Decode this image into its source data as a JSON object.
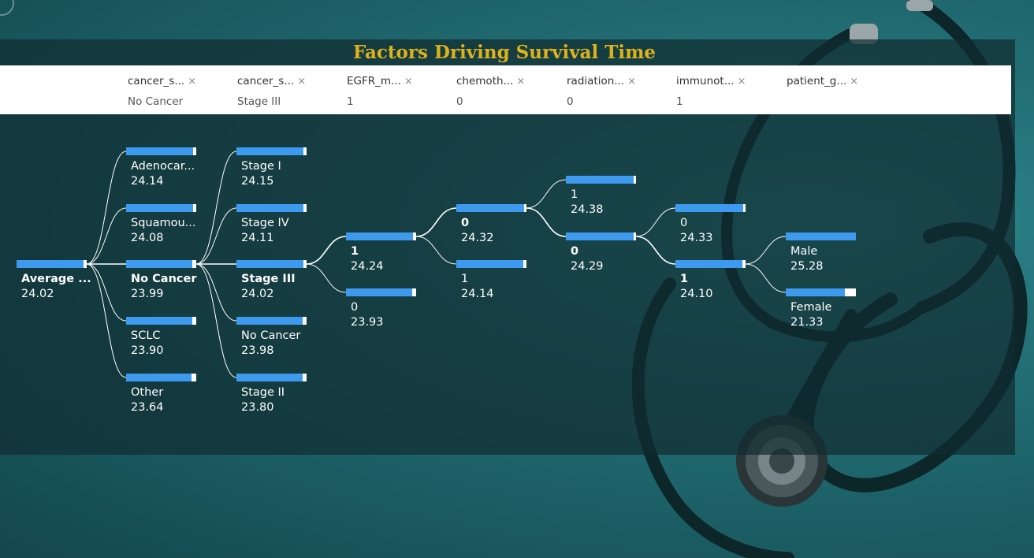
{
  "title": "Factors Driving Survival Time",
  "filters": [
    {
      "name": "cancer_s...",
      "value": "No Cancer"
    },
    {
      "name": "cancer_s...",
      "value": "Stage III"
    },
    {
      "name": "EGFR_m...",
      "value": "1"
    },
    {
      "name": "chemoth...",
      "value": "0"
    },
    {
      "name": "radiation...",
      "value": "0"
    },
    {
      "name": "immunot...",
      "value": "1"
    },
    {
      "name": "patient_g...",
      "value": ""
    }
  ],
  "remove_glyph": "×",
  "colors": {
    "title": "#e0b21a",
    "bar": "#3d9aee",
    "track": "#ffffff"
  },
  "tree": {
    "scale_max": 25.28,
    "levels": [
      {
        "nodes": [
          {
            "label": "Average ...",
            "value": 24.02,
            "selected": true
          }
        ]
      },
      {
        "nodes": [
          {
            "label": "Adenocar...",
            "value": 24.14
          },
          {
            "label": "Squamou...",
            "value": 24.08
          },
          {
            "label": "No Cancer",
            "value": 23.99,
            "selected": true
          },
          {
            "label": "SCLC",
            "value": 23.9
          },
          {
            "label": "Other",
            "value": 23.64
          }
        ]
      },
      {
        "nodes": [
          {
            "label": "Stage I",
            "value": 24.15
          },
          {
            "label": "Stage IV",
            "value": 24.11
          },
          {
            "label": "Stage III",
            "value": 24.02,
            "selected": true
          },
          {
            "label": "No Cancer",
            "value": 23.98
          },
          {
            "label": "Stage II",
            "value": 23.8
          }
        ]
      },
      {
        "nodes": [
          {
            "label": "1",
            "value": 24.24,
            "selected": true
          },
          {
            "label": "0",
            "value": 23.93
          }
        ]
      },
      {
        "nodes": [
          {
            "label": "0",
            "value": 24.32,
            "selected": true
          },
          {
            "label": "1",
            "value": 24.14
          }
        ]
      },
      {
        "nodes": [
          {
            "label": "1",
            "value": 24.38
          },
          {
            "label": "0",
            "value": 24.29,
            "selected": true
          }
        ]
      },
      {
        "nodes": [
          {
            "label": "0",
            "value": 24.33
          },
          {
            "label": "1",
            "value": 24.1,
            "selected": true
          }
        ]
      },
      {
        "nodes": [
          {
            "label": "Male",
            "value": 25.28
          },
          {
            "label": "Female",
            "value": 21.33
          }
        ]
      }
    ]
  }
}
